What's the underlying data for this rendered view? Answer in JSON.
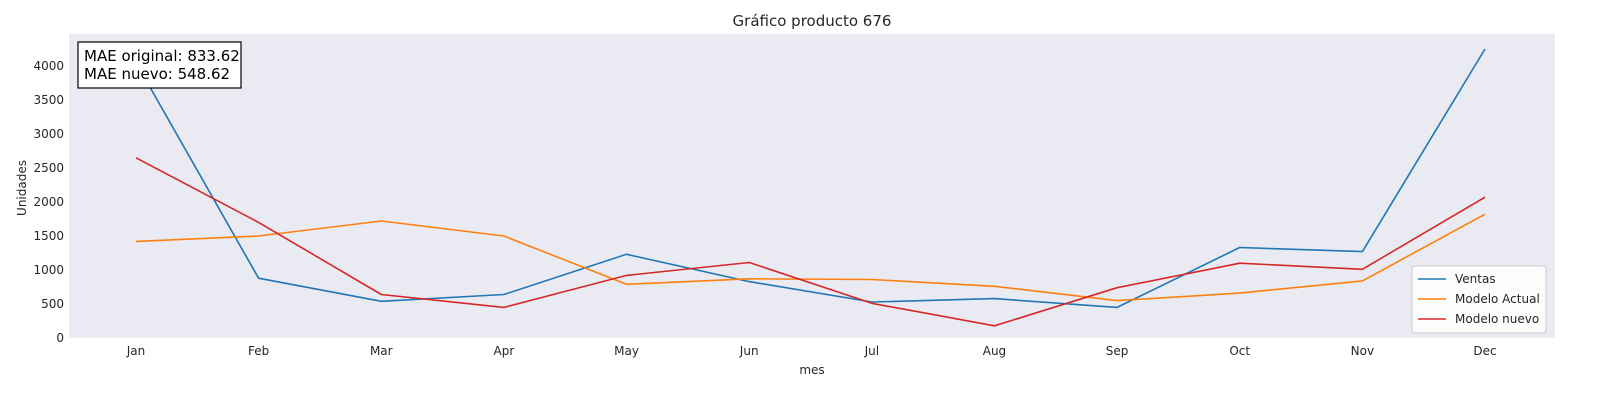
{
  "chart_data": {
    "type": "line",
    "title": "Gráfico producto 676",
    "xlabel": "mes",
    "ylabel": "Unidades",
    "categories": [
      "Jan",
      "Feb",
      "Mar",
      "Apr",
      "May",
      "Jun",
      "Jul",
      "Aug",
      "Sep",
      "Oct",
      "Nov",
      "Dec"
    ],
    "yticks": [
      0,
      500,
      1000,
      1500,
      2000,
      2500,
      3000,
      3500,
      4000
    ],
    "ylim": [
      0,
      4470
    ],
    "grid": false,
    "legend_position": "lower-right",
    "series": [
      {
        "name": "Ventas",
        "color": "#1f77b4",
        "values": [
          4050,
          880,
          540,
          640,
          1230,
          830,
          530,
          580,
          450,
          1330,
          1270,
          4250
        ]
      },
      {
        "name": "Modelo Actual",
        "color": "#ff7f0e",
        "values": [
          1420,
          1500,
          1720,
          1500,
          790,
          870,
          860,
          760,
          550,
          660,
          840,
          1820
        ]
      },
      {
        "name": "Modelo nuevo",
        "color": "#d62728",
        "values": [
          2650,
          1700,
          640,
          450,
          920,
          1110,
          510,
          180,
          740,
          1100,
          1010,
          2070
        ]
      }
    ],
    "annotation": {
      "line1": "MAE original: 833.62",
      "line2": "MAE nuevo: 548.62"
    }
  }
}
